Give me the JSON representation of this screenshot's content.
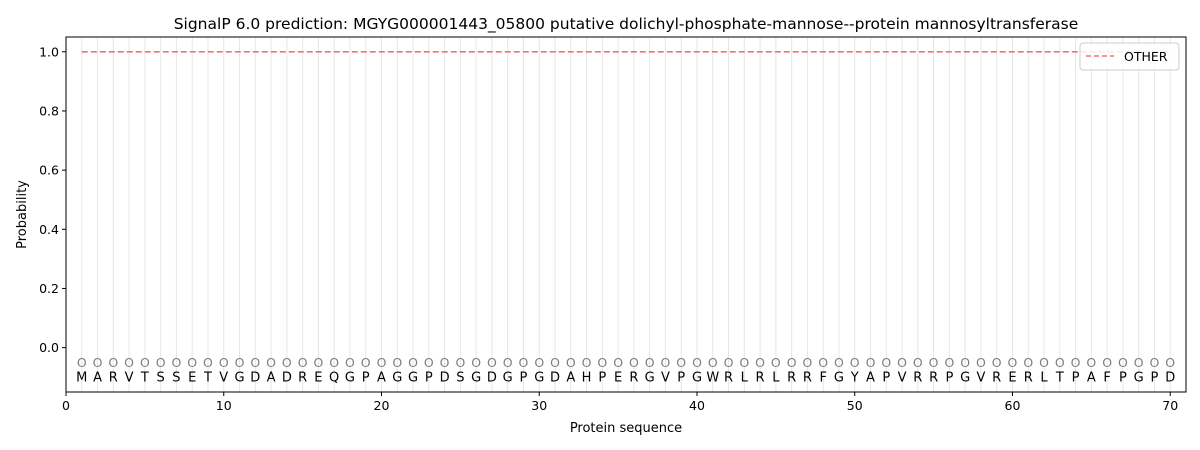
{
  "chart_data": {
    "type": "line",
    "title": "SignalP 6.0 prediction: MGYG000001443_05800 putative dolichyl-phosphate-mannose--protein mannosyltransferase",
    "xlabel": "Protein sequence",
    "ylabel": "Probability",
    "xlim": [
      0,
      71
    ],
    "ylim": [
      -0.15,
      1.05
    ],
    "x_ticks": [
      0,
      10,
      20,
      30,
      40,
      50,
      60,
      70
    ],
    "y_ticks": [
      0.0,
      0.2,
      0.4,
      0.6,
      0.8,
      1.0
    ],
    "y_tick_labels": [
      "0.0",
      "0.2",
      "0.4",
      "0.6",
      "0.8",
      "1.0"
    ],
    "grid": "vertical lines at each residue",
    "legend_position": "top-right",
    "sequence": [
      "M",
      "A",
      "R",
      "V",
      "T",
      "S",
      "S",
      "E",
      "T",
      "V",
      "G",
      "D",
      "A",
      "D",
      "R",
      "E",
      "Q",
      "G",
      "P",
      "A",
      "G",
      "G",
      "P",
      "D",
      "S",
      "G",
      "D",
      "G",
      "P",
      "G",
      "D",
      "A",
      "H",
      "P",
      "E",
      "R",
      "G",
      "V",
      "P",
      "G",
      "W",
      "R",
      "L",
      "R",
      "L",
      "R",
      "R",
      "F",
      "G",
      "Y",
      "A",
      "P",
      "V",
      "R",
      "R",
      "P",
      "G",
      "V",
      "R",
      "E",
      "R",
      "L",
      "T",
      "P",
      "A",
      "F",
      "P",
      "G",
      "P",
      "D"
    ],
    "region_label": "O",
    "series": [
      {
        "name": "OTHER",
        "color": "#e97777",
        "style": "dashed",
        "x_start": 1,
        "x_end": 70,
        "value": 1.0
      }
    ]
  }
}
